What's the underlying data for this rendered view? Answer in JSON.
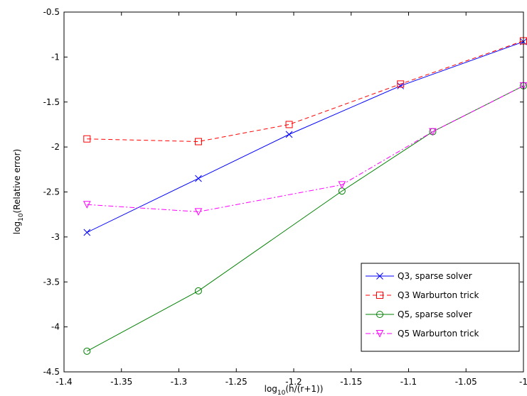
{
  "chart_data": {
    "type": "line",
    "xlabel": {
      "prefix": "log",
      "sub": "10",
      "rest": "(h/(r+1))"
    },
    "ylabel": {
      "prefix": "log",
      "sub": "10",
      "rest": "(Relative error)"
    },
    "xlim": [
      -1.4,
      -1.0
    ],
    "ylim": [
      -4.5,
      -0.5
    ],
    "xticks": [
      -1.4,
      -1.35,
      -1.3,
      -1.25,
      -1.2,
      -1.15,
      -1.1,
      -1.05,
      -1.0
    ],
    "xtick_labels": [
      "-1.4",
      "-1.35",
      "-1.3",
      "-1.25",
      "-1.2",
      "-1.15",
      "-1.1",
      "-1.05",
      "-1"
    ],
    "yticks": [
      -4.5,
      -4.0,
      -3.5,
      -3.0,
      -2.5,
      -2.0,
      -1.5,
      -1.0,
      -0.5
    ],
    "ytick_labels": [
      "-4.5",
      "-4",
      "-3.5",
      "-3",
      "-2.5",
      "-2",
      "-1.5",
      "-1",
      "-0.5"
    ],
    "grid": false,
    "legend_position": "bottom-right",
    "series": [
      {
        "name": "Q3, sparse solver",
        "color": "#0000ff",
        "dash": "solid",
        "marker": "x",
        "x": [
          -1.38,
          -1.283,
          -1.204,
          -1.107,
          -1.0
        ],
        "y": [
          -2.95,
          -2.35,
          -1.86,
          -1.32,
          -0.83
        ]
      },
      {
        "name": "Q3 Warburton trick",
        "color": "#ff0000",
        "dash": "dashed",
        "marker": "square",
        "x": [
          -1.38,
          -1.283,
          -1.204,
          -1.107,
          -1.0
        ],
        "y": [
          -1.91,
          -1.94,
          -1.75,
          -1.3,
          -0.82
        ]
      },
      {
        "name": "Q5, sparse solver",
        "color": "#008000",
        "dash": "solid",
        "marker": "circle",
        "x": [
          -1.38,
          -1.283,
          -1.158,
          -1.079,
          -1.0
        ],
        "y": [
          -4.27,
          -3.6,
          -2.49,
          -1.83,
          -1.32
        ]
      },
      {
        "name": "Q5 Warburton trick",
        "color": "#ff00ff",
        "dash": "dashdot",
        "marker": "triangle-down",
        "x": [
          -1.38,
          -1.283,
          -1.158,
          -1.079,
          -1.0
        ],
        "y": [
          -2.64,
          -2.72,
          -2.42,
          -1.83,
          -1.32
        ]
      }
    ]
  }
}
